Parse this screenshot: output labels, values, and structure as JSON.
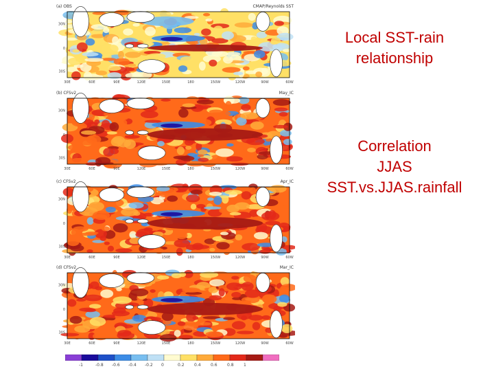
{
  "slide": {
    "title_line1": "Local SST-rain",
    "title_line2": "relationship",
    "desc_line1": "Correlation",
    "desc_line2": "JJAS",
    "desc_line3": "SST.vs.JJAS.rainfall"
  },
  "panels": [
    {
      "label": "(a) OBS",
      "right": "CMAP/Reynolds SST"
    },
    {
      "label": "(b) CFSv2",
      "right": "May_IC"
    },
    {
      "label": "(c) CFSv2",
      "right": "Apr_IC"
    },
    {
      "label": "(d) CFSv2",
      "right": "Mar_IC"
    }
  ],
  "axes": {
    "lat_ticks": [
      "30N",
      "0",
      "30S"
    ],
    "lon_ticks": [
      "30E",
      "60E",
      "90E",
      "120E",
      "150E",
      "180",
      "150W",
      "120W",
      "90W",
      "60W"
    ]
  },
  "colorbar": {
    "levels": [
      "-1",
      "-0.8",
      "-0.6",
      "-0.4",
      "-0.2",
      "0",
      "0.2",
      "0.4",
      "0.6",
      "0.8",
      "1"
    ],
    "colors": [
      "#8a3fd6",
      "#1a0c9c",
      "#1e50c8",
      "#3c8ce6",
      "#78bef0",
      "#bfe0f5",
      "#fffbd0",
      "#ffe066",
      "#ffaa3a",
      "#ff6a1a",
      "#e3291a",
      "#a61a14",
      "#f06ec0"
    ]
  }
}
